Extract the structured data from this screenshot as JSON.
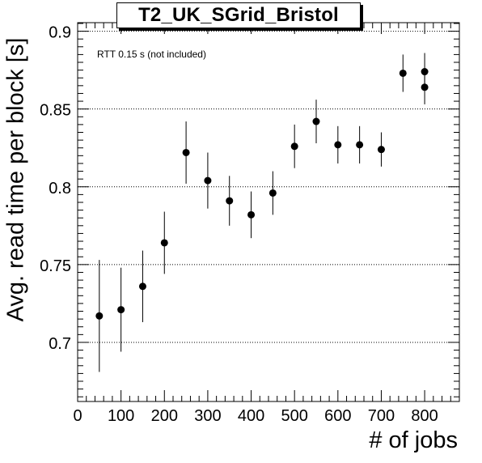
{
  "title": "T2_UK_SGrid_Bristol",
  "annotation": "RTT 0.15 s (not included)",
  "chart_data": {
    "type": "scatter",
    "title": "T2_UK_SGrid_Bristol",
    "xlabel": "# of jobs",
    "ylabel": "Avg. read time per block [s]",
    "xlim": [
      0,
      880
    ],
    "ylim": [
      0.662,
      0.9055
    ],
    "x_ticks": [
      0,
      100,
      200,
      300,
      400,
      500,
      600,
      700,
      800
    ],
    "y_ticks": [
      0.7,
      0.75,
      0.8,
      0.85,
      0.9
    ],
    "y_tick_labels": [
      "0.7",
      "0.75",
      "0.8",
      "0.85",
      "0.9"
    ],
    "grid": "horizontal dotted",
    "series": [
      {
        "points": [
          {
            "x": 50,
            "y": 0.717,
            "err": 0.036
          },
          {
            "x": 100,
            "y": 0.721,
            "err": 0.027
          },
          {
            "x": 150,
            "y": 0.736,
            "err": 0.023
          },
          {
            "x": 200,
            "y": 0.764,
            "err": 0.02
          },
          {
            "x": 250,
            "y": 0.822,
            "err": 0.02
          },
          {
            "x": 300,
            "y": 0.804,
            "err": 0.018
          },
          {
            "x": 350,
            "y": 0.791,
            "err": 0.016
          },
          {
            "x": 400,
            "y": 0.782,
            "err": 0.015
          },
          {
            "x": 450,
            "y": 0.796,
            "err": 0.014
          },
          {
            "x": 500,
            "y": 0.826,
            "err": 0.014
          },
          {
            "x": 550,
            "y": 0.842,
            "err": 0.014
          },
          {
            "x": 600,
            "y": 0.827,
            "err": 0.012
          },
          {
            "x": 650,
            "y": 0.827,
            "err": 0.012
          },
          {
            "x": 700,
            "y": 0.824,
            "err": 0.011
          },
          {
            "x": 750,
            "y": 0.873,
            "err": 0.012
          },
          {
            "x": 800,
            "y": 0.874,
            "err": 0.012
          },
          {
            "x": 800,
            "y": 0.864,
            "err": 0.011
          }
        ]
      }
    ]
  }
}
